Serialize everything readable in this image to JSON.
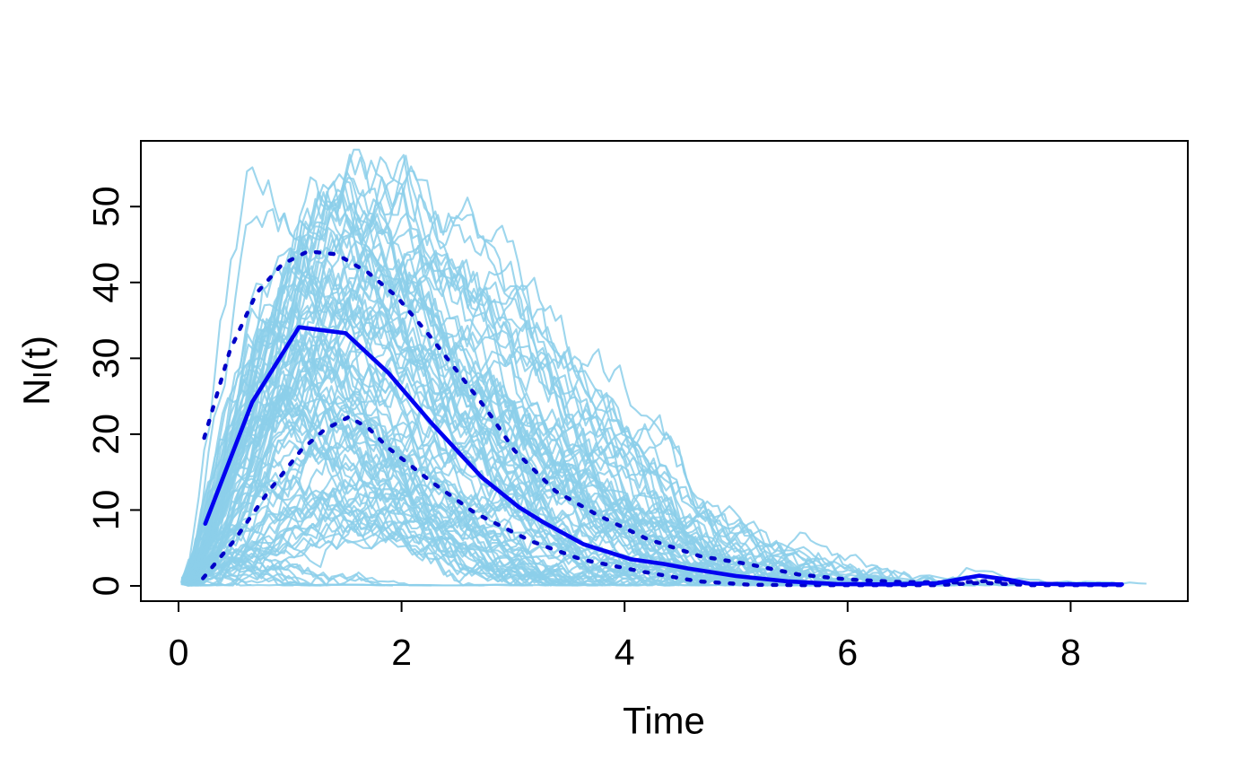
{
  "figure": {
    "xlabel": "Time",
    "ylabel_parts": {
      "base": "N",
      "sub": "I",
      "suffix": "(t)"
    }
  },
  "chart_data": {
    "type": "line",
    "title": "",
    "xlabel": "Time",
    "ylabel": "N_I(t)",
    "xlim": [
      -0.34,
      9.05
    ],
    "ylim": [
      -2.0,
      58.7
    ],
    "xticks": [
      0,
      2,
      4,
      6,
      8
    ],
    "yticks": [
      0,
      10,
      20,
      30,
      40,
      50
    ],
    "grid": false,
    "legend": null,
    "colors": {
      "ensemble": "#8CCFEA",
      "mean": "#0202F0",
      "quantile": "#0000C8",
      "axis": "#000000",
      "background": "#FFFFFF"
    },
    "series": [
      {
        "name": "simulated trajectories",
        "type": "ensemble",
        "color": "#8CCFEA",
        "count": 100,
        "seed": 20240817,
        "description": "about 100 light-blue stochastic epidemic sample paths starting near (0,1), peaking between ~5 and ~56 around t=0.7-2.5, mostly extinct by t=4-6"
      },
      {
        "name": "mean",
        "type": "solid",
        "color": "#0202F0",
        "points": [
          [
            0.24,
            8.2
          ],
          [
            0.66,
            24.2
          ],
          [
            1.08,
            34.1
          ],
          [
            1.5,
            33.3
          ],
          [
            1.88,
            28.1
          ],
          [
            2.26,
            21.6
          ],
          [
            2.72,
            14.3
          ],
          [
            3.05,
            10.4
          ],
          [
            3.27,
            8.4
          ],
          [
            3.63,
            5.5
          ],
          [
            4.06,
            3.5
          ],
          [
            4.35,
            2.9
          ],
          [
            4.57,
            2.3
          ],
          [
            5.0,
            1.3
          ],
          [
            5.46,
            0.6
          ],
          [
            5.9,
            0.25
          ],
          [
            6.35,
            0.2
          ],
          [
            6.8,
            0.35
          ],
          [
            7.18,
            1.35
          ],
          [
            7.45,
            0.8
          ],
          [
            7.63,
            0.3
          ],
          [
            8.05,
            0.2
          ],
          [
            8.46,
            0.2
          ]
        ]
      },
      {
        "name": "upper quantile",
        "type": "dotted",
        "color": "#0000C8",
        "points": [
          [
            0.23,
            19.5
          ],
          [
            0.46,
            31.0
          ],
          [
            0.7,
            38.6
          ],
          [
            0.93,
            42.4
          ],
          [
            1.16,
            44.1
          ],
          [
            1.42,
            43.7
          ],
          [
            1.7,
            41.3
          ],
          [
            1.96,
            38.1
          ],
          [
            2.25,
            33.0
          ],
          [
            2.52,
            27.9
          ],
          [
            2.77,
            23.1
          ],
          [
            3.01,
            17.9
          ],
          [
            3.38,
            12.5
          ],
          [
            3.75,
            9.4
          ],
          [
            4.2,
            6.2
          ],
          [
            4.68,
            3.9
          ],
          [
            5.1,
            2.9
          ],
          [
            5.56,
            1.5
          ],
          [
            6.0,
            0.85
          ],
          [
            6.5,
            0.5
          ],
          [
            7.0,
            0.45
          ],
          [
            7.25,
            0.65
          ],
          [
            7.65,
            0.3
          ],
          [
            8.05,
            0.22
          ],
          [
            8.46,
            0.22
          ]
        ]
      },
      {
        "name": "lower quantile",
        "type": "dotted",
        "color": "#0000C8",
        "points": [
          [
            0.22,
            1.0
          ],
          [
            0.5,
            6.0
          ],
          [
            0.8,
            12.3
          ],
          [
            1.1,
            17.9
          ],
          [
            1.31,
            20.6
          ],
          [
            1.53,
            22.3
          ],
          [
            1.71,
            20.7
          ],
          [
            1.88,
            18.2
          ],
          [
            2.26,
            13.8
          ],
          [
            2.66,
            9.6
          ],
          [
            3.16,
            5.9
          ],
          [
            3.61,
            3.5
          ],
          [
            4.15,
            1.9
          ],
          [
            4.66,
            0.6
          ],
          [
            5.12,
            0.15
          ],
          [
            5.6,
            0.1
          ],
          [
            6.2,
            0.1
          ],
          [
            6.8,
            0.1
          ],
          [
            7.2,
            0.4
          ],
          [
            7.65,
            0.1
          ],
          [
            8.46,
            0.1
          ]
        ]
      }
    ],
    "ensemble_extra_paths": [
      [
        [
          0.05,
          0.6
        ],
        [
          0.3,
          2.0
        ],
        [
          0.8,
          4.0
        ],
        [
          1.5,
          5.5
        ],
        [
          2.2,
          6.0
        ],
        [
          3.0,
          5.0
        ],
        [
          3.8,
          3.5
        ],
        [
          4.5,
          2.2
        ],
        [
          5.2,
          1.6
        ],
        [
          5.8,
          1.2
        ],
        [
          6.4,
          1.0
        ],
        [
          6.9,
          1.2
        ],
        [
          7.15,
          2.2
        ],
        [
          7.45,
          0.9
        ],
        [
          7.8,
          0.5
        ],
        [
          8.3,
          0.4
        ],
        [
          8.68,
          0.3
        ]
      ],
      [
        [
          0.05,
          0.5
        ],
        [
          0.5,
          3.0
        ],
        [
          1.2,
          6.0
        ],
        [
          2.0,
          7.0
        ],
        [
          2.8,
          5.0
        ],
        [
          3.6,
          3.0
        ],
        [
          4.4,
          2.0
        ],
        [
          5.0,
          1.2
        ],
        [
          5.6,
          0.8
        ],
        [
          6.2,
          0.5
        ],
        [
          6.6,
          0.3
        ],
        [
          7.05,
          0.2
        ],
        [
          7.55,
          0.12
        ]
      ],
      [
        [
          0.1,
          0.8
        ],
        [
          0.6,
          5.0
        ],
        [
          1.3,
          9.0
        ],
        [
          2.0,
          10.0
        ],
        [
          2.6,
          8.0
        ],
        [
          3.2,
          6.0
        ],
        [
          3.9,
          4.5
        ],
        [
          4.6,
          3.2
        ],
        [
          5.3,
          2.4
        ],
        [
          5.9,
          1.6
        ],
        [
          6.5,
          0.8
        ],
        [
          6.9,
          0.3
        ]
      ]
    ]
  }
}
